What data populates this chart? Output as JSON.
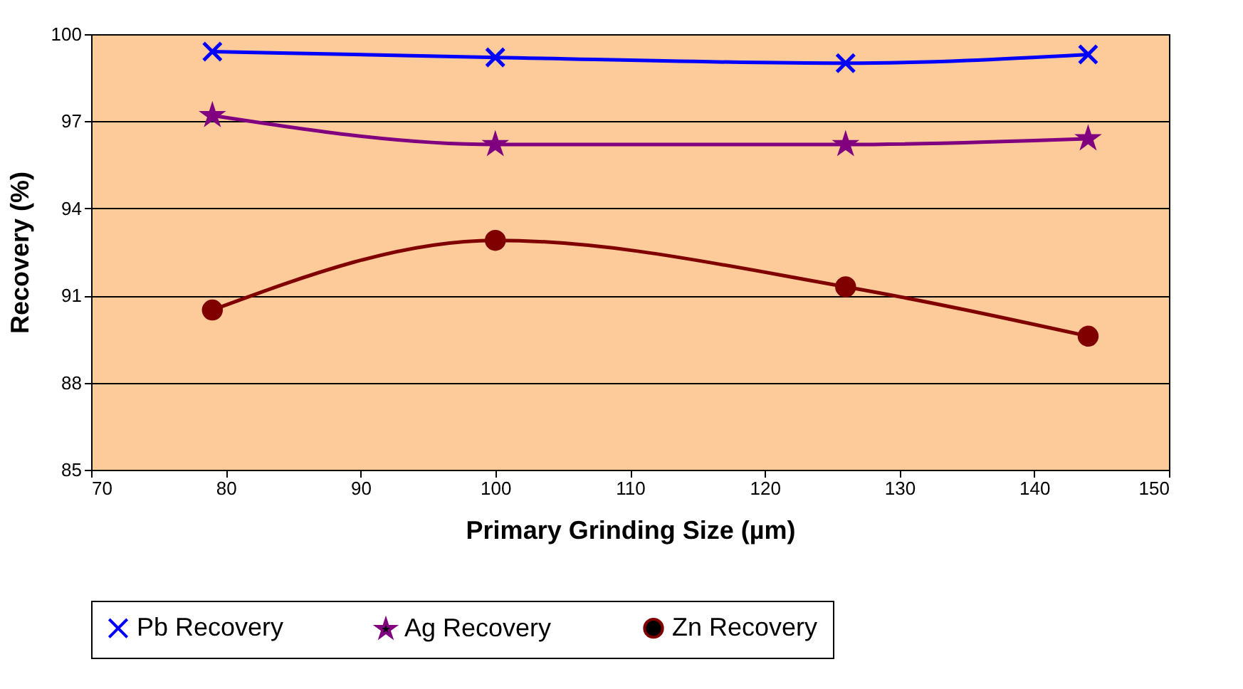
{
  "chart_data": {
    "type": "line",
    "xlabel": "Primary Grinding Size (µm)",
    "ylabel": "Recovery (%)",
    "x": [
      79,
      100,
      126,
      144
    ],
    "series": [
      {
        "name": "Pb Recovery",
        "color": "#0000ff",
        "marker": "cross",
        "values": [
          99.4,
          99.2,
          99.0,
          99.3
        ]
      },
      {
        "name": "Ag Recovery",
        "color": "#800080",
        "marker": "star",
        "values": [
          97.2,
          96.2,
          96.2,
          96.4
        ]
      },
      {
        "name": "Zn Recovery",
        "color": "#800000",
        "marker": "circle",
        "values": [
          90.5,
          92.9,
          91.3,
          89.6
        ]
      }
    ],
    "xlim": [
      70,
      150
    ],
    "xticks": [
      70,
      80,
      90,
      100,
      110,
      120,
      130,
      140,
      150
    ],
    "ylim": [
      85,
      100
    ],
    "yticks": [
      85,
      88,
      91,
      94,
      97,
      100
    ],
    "grid": "y",
    "legend": "bottom"
  }
}
